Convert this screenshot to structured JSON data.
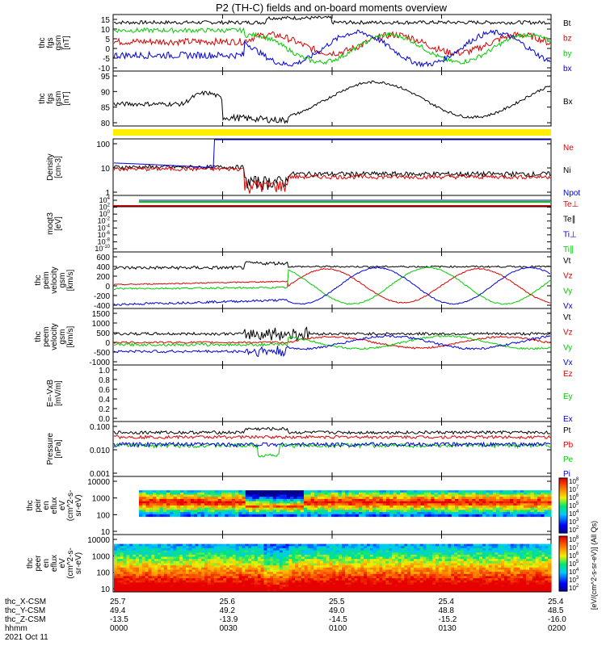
{
  "title": "P2 (TH-C) fields and on-board moments overview",
  "colors": {
    "black": "#000000",
    "red": "#dd0000",
    "green": "#00cc00",
    "blue": "#0000dd",
    "yellow": "#ffee00"
  },
  "chart_data": [
    {
      "panel": "fgs",
      "type": "line",
      "ylabel": [
        "thc",
        "fgs",
        "gsm",
        "[nT]"
      ],
      "yticks": [
        15,
        10,
        5,
        0,
        -5,
        -10
      ],
      "ylim": [
        -10,
        15
      ],
      "legend": [
        {
          "label": "Bt",
          "color": "black"
        },
        {
          "label": "bz",
          "color": "red"
        },
        {
          "label": "by",
          "color": "green"
        },
        {
          "label": "bx",
          "color": "blue"
        }
      ]
    },
    {
      "panel": "fgs_gsm_bx",
      "type": "line",
      "ylabel": [
        "thc",
        "fgs",
        "gsm",
        "[nT]"
      ],
      "yticks": [
        95,
        90,
        85,
        80
      ],
      "ylim": [
        76,
        101
      ],
      "legend": [
        {
          "label": "Bx",
          "color": "black"
        }
      ]
    },
    {
      "panel": "density",
      "type": "line",
      "ylabel": [
        "Density",
        "[cm-3]"
      ],
      "yticks": [
        "100",
        "10",
        "1"
      ],
      "scale": "log",
      "legend": [
        {
          "label": "Ne",
          "color": "red"
        },
        {
          "label": "Ni",
          "color": "black"
        },
        {
          "label": "Npot",
          "color": "blue"
        }
      ]
    },
    {
      "panel": "temperature",
      "type": "line",
      "ylabel": [
        "moqt3",
        "[eV]"
      ],
      "yticks": [
        "10^4",
        "10^2",
        "10^0",
        "10^-2",
        "10^-4",
        "10^-6",
        "10^-8",
        "10^-10"
      ],
      "scale": "log",
      "legend": [
        {
          "label": "Te⊥",
          "color": "red"
        },
        {
          "label": "Te∥",
          "color": "black"
        },
        {
          "label": "Ti⊥",
          "color": "blue"
        },
        {
          "label": "Ti∥",
          "color": "green"
        }
      ]
    },
    {
      "panel": "peim_velocity",
      "type": "line",
      "ylabel": [
        "thc",
        "peim",
        "velocity",
        "gsm",
        "[km/s]"
      ],
      "yticks": [
        600,
        400,
        200,
        0,
        -200,
        -400
      ],
      "ylim": [
        -400,
        600
      ],
      "legend": [
        {
          "label": "Vt",
          "color": "black"
        },
        {
          "label": "Vz",
          "color": "red"
        },
        {
          "label": "Vy",
          "color": "green"
        },
        {
          "label": "Vx",
          "color": "blue"
        }
      ]
    },
    {
      "panel": "peem_velocity",
      "type": "line",
      "ylabel": [
        "thc",
        "peem",
        "velocity",
        "gsm",
        "[km/s]"
      ],
      "yticks": [
        1500,
        1000,
        500,
        0,
        -500,
        -1000
      ],
      "ylim": [
        -1000,
        1500
      ],
      "legend": [
        {
          "label": "Vt",
          "color": "black"
        },
        {
          "label": "Vz",
          "color": "red"
        },
        {
          "label": "Vy",
          "color": "green"
        },
        {
          "label": "Vx",
          "color": "blue"
        }
      ]
    },
    {
      "panel": "efield",
      "type": "line",
      "ylabel": [
        "E=-VxB",
        "[mV/m]"
      ],
      "yticks": [
        "1.0",
        "0.8",
        "0.6",
        "0.4",
        "0.2",
        "0.0"
      ],
      "ylim": [
        0,
        1
      ],
      "legend": [
        {
          "label": "Ez",
          "color": "red"
        },
        {
          "label": "Ey",
          "color": "green"
        },
        {
          "label": "Ex",
          "color": "blue"
        }
      ]
    },
    {
      "panel": "pressure",
      "type": "line",
      "ylabel": [
        "Pressure",
        "[nPa]"
      ],
      "yticks": [
        "0.100",
        "0.010",
        "0.001"
      ],
      "scale": "log",
      "legend": [
        {
          "label": "Pt",
          "color": "black"
        },
        {
          "label": "Pb",
          "color": "red"
        },
        {
          "label": "Pe",
          "color": "green"
        },
        {
          "label": "Pi",
          "color": "blue"
        }
      ]
    },
    {
      "panel": "peir_en_eflux",
      "type": "heatmap",
      "ylabel": [
        "thc",
        "peir",
        "en",
        "eflux",
        "eV",
        "(cm^2-s-",
        "sr-eV)"
      ],
      "yticks": [
        "10000",
        "1000",
        "100",
        "10"
      ],
      "scale": "log"
    },
    {
      "panel": "peer_en_eflux",
      "type": "heatmap",
      "ylabel": [
        "thc",
        "peer",
        "en",
        "eflux",
        "eV",
        "(cm^2-s-",
        "sr-eV)"
      ],
      "yticks": [
        "10000",
        "1000",
        "100",
        "10"
      ],
      "scale": "log"
    }
  ],
  "colorbar": {
    "label": "[eV/(cm^2-s-sr-eV)] (All Qs)",
    "ticks_top": [
      "10^8",
      "10^7",
      "10^6",
      "10^5",
      "10^4",
      "10^3",
      "10^2"
    ],
    "ticks_bottom": [
      "10^8",
      "10^7",
      "10^6",
      "10^5",
      "10^4",
      "10^3",
      "10^2"
    ]
  },
  "xaxis": {
    "row_labels": [
      "thc_X-CSM",
      "thc_Y-CSM",
      "thc_Z-CSM",
      "hhmm",
      "2021 Oct 11"
    ],
    "columns": [
      {
        "x": "25.7",
        "y": "49.4",
        "z": "-13.5",
        "t": "0000"
      },
      {
        "x": "25.6",
        "y": "49.2",
        "z": "-13.9",
        "t": "0030"
      },
      {
        "x": "25.5",
        "y": "49.0",
        "z": "-14.5",
        "t": "0100"
      },
      {
        "x": "25.4",
        "y": "48.8",
        "z": "-15.2",
        "t": "0130"
      },
      {
        "x": "25.4",
        "y": "48.5",
        "z": "-16.0",
        "t": "0200"
      }
    ]
  }
}
